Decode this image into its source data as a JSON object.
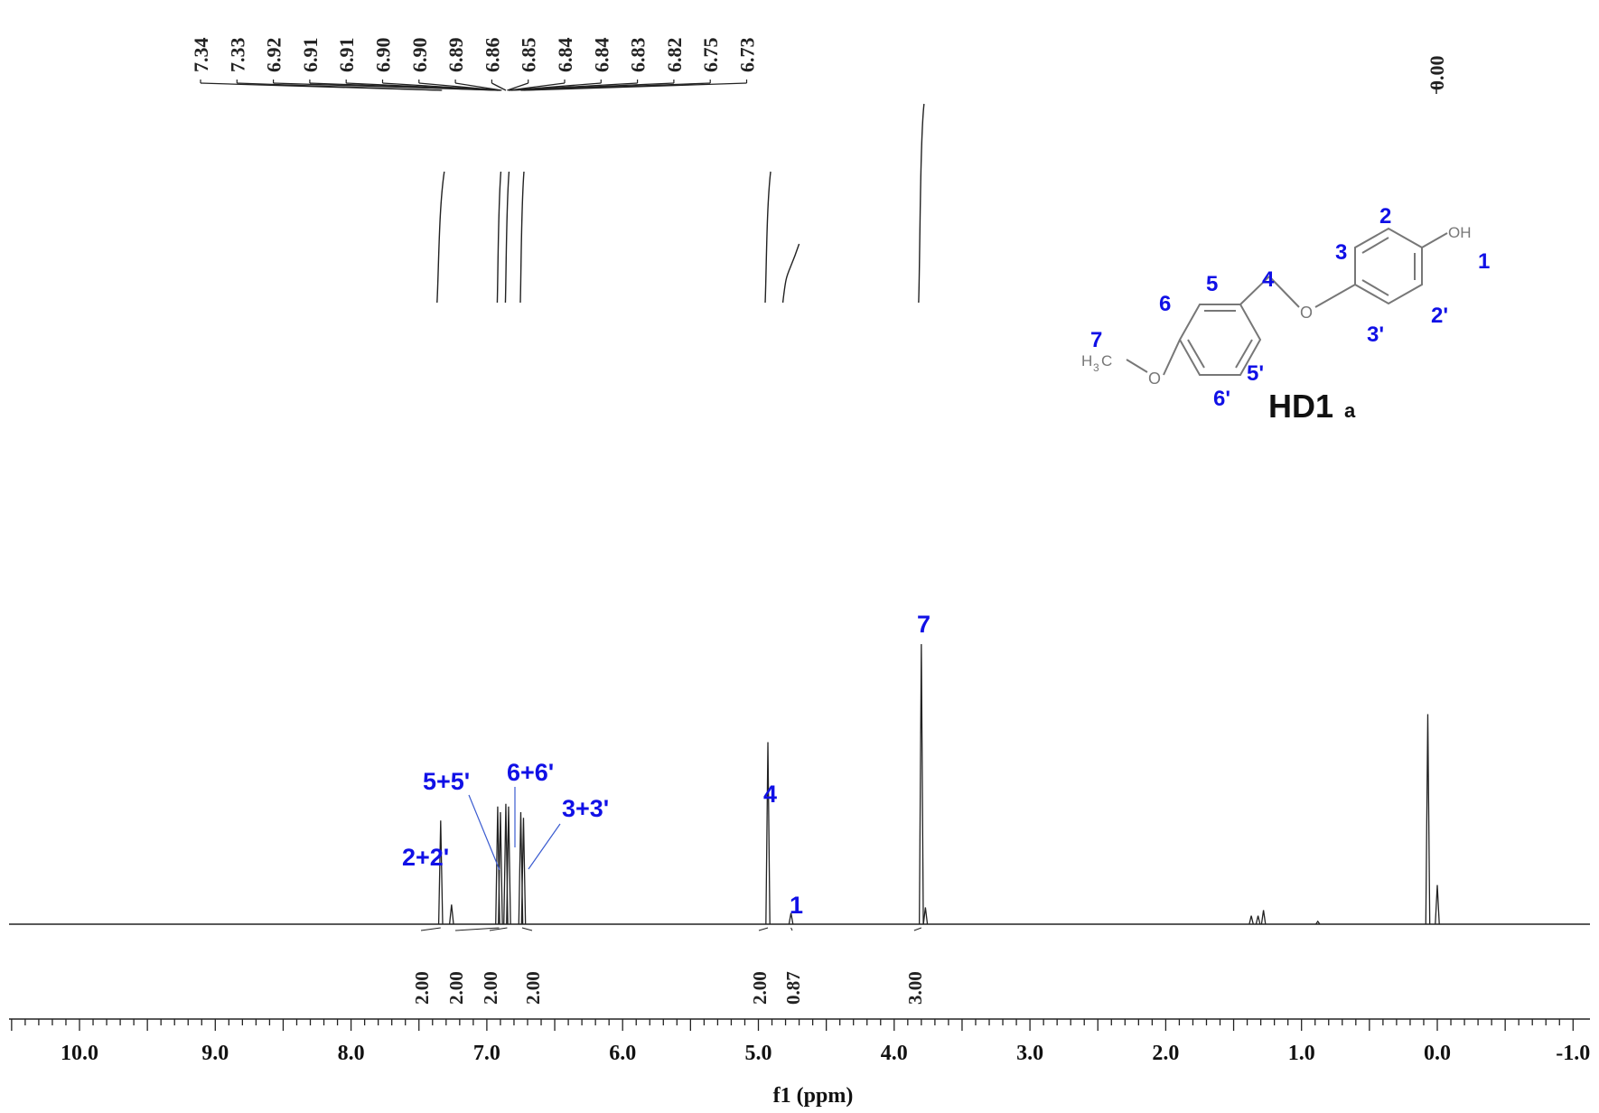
{
  "chart_data": {
    "type": "line",
    "xlabel": "f1 (ppm)",
    "x_axis_reversed": true,
    "xlim": [
      10.6,
      -1.0
    ],
    "x_ticks": [
      "10.0",
      "9.0",
      "8.0",
      "7.0",
      "6.0",
      "5.0",
      "4.0",
      "3.0",
      "2.0",
      "1.0",
      "0.0",
      "-1.0"
    ],
    "peak_labels": [
      "7.34",
      "7.33",
      "6.92",
      "6.91",
      "6.91",
      "6.90",
      "6.90",
      "6.89",
      "6.86",
      "6.85",
      "6.84",
      "6.84",
      "6.83",
      "6.82",
      "6.75",
      "6.73"
    ],
    "reference_label": "0.00",
    "peaks": [
      {
        "ppm": 7.34,
        "height": 0.37
      },
      {
        "ppm": 7.26,
        "height": 0.07
      },
      {
        "ppm": 6.92,
        "height": 0.42
      },
      {
        "ppm": 6.9,
        "height": 0.4
      },
      {
        "ppm": 6.86,
        "height": 0.43
      },
      {
        "ppm": 6.84,
        "height": 0.42
      },
      {
        "ppm": 6.75,
        "height": 0.4
      },
      {
        "ppm": 6.73,
        "height": 0.38
      },
      {
        "ppm": 4.93,
        "height": 0.65
      },
      {
        "ppm": 4.76,
        "height": 0.04
      },
      {
        "ppm": 3.8,
        "height": 1.0
      },
      {
        "ppm": 3.77,
        "height": 0.06
      },
      {
        "ppm": 1.37,
        "height": 0.03
      },
      {
        "ppm": 1.32,
        "height": 0.03
      },
      {
        "ppm": 1.28,
        "height": 0.05
      },
      {
        "ppm": 0.88,
        "height": 0.01
      },
      {
        "ppm": 0.07,
        "height": 0.75
      },
      {
        "ppm": 0.0,
        "height": 0.14
      }
    ],
    "integrals": [
      {
        "ppm": 7.34,
        "value": "2.00"
      },
      {
        "ppm": 6.91,
        "value": "2.00"
      },
      {
        "ppm": 6.85,
        "value": "2.00"
      },
      {
        "ppm": 6.74,
        "value": "2.00"
      },
      {
        "ppm": 4.93,
        "value": "2.00"
      },
      {
        "ppm": 4.76,
        "value": "0.87"
      },
      {
        "ppm": 3.8,
        "value": "3.00"
      }
    ],
    "assignments": [
      {
        "label": "2+2'",
        "ppm": 7.34
      },
      {
        "label": "5+5'",
        "ppm": 6.91
      },
      {
        "label": "6+6'",
        "ppm": 6.85
      },
      {
        "label": "3+3'",
        "ppm": 6.74
      },
      {
        "label": "4",
        "ppm": 4.93
      },
      {
        "label": "1",
        "ppm": 4.76
      },
      {
        "label": "7",
        "ppm": 3.8
      }
    ]
  },
  "structure": {
    "compound_name": "HD1",
    "compound_subscript": "a",
    "oh_label": "OH",
    "methyl_label_h": "H",
    "methyl_label_sub": "3",
    "methyl_label_c": "C",
    "oxygen_label": "O",
    "numbers": [
      "1",
      "2",
      "2'",
      "3",
      "3'",
      "4",
      "5",
      "5'",
      "6",
      "6'",
      "7"
    ]
  }
}
